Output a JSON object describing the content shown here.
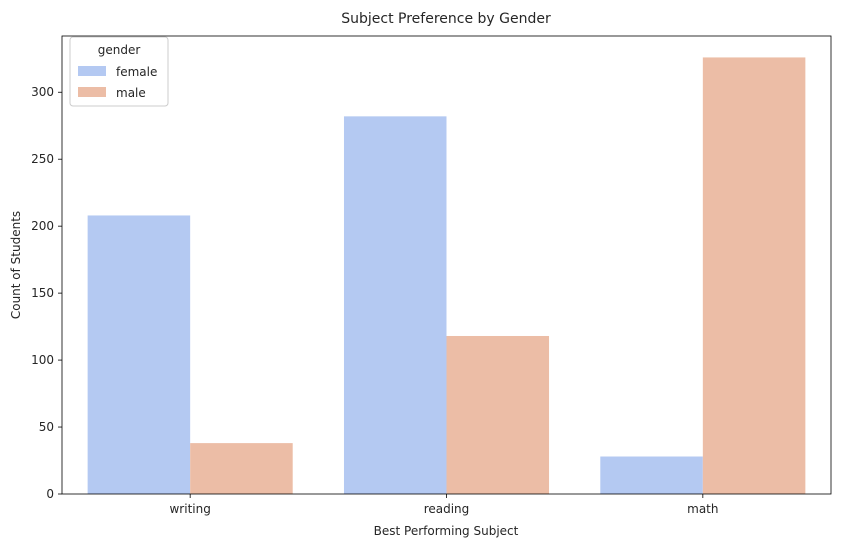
{
  "chart_data": {
    "type": "bar",
    "title": "Subject Preference by Gender",
    "xlabel": "Best Performing Subject",
    "ylabel": "Count of Students",
    "categories": [
      "writing",
      "reading",
      "math"
    ],
    "series": [
      {
        "name": "female",
        "values": [
          208,
          282,
          28
        ],
        "color": "#b4c9f2"
      },
      {
        "name": "male",
        "values": [
          38,
          118,
          326
        ],
        "color": "#ecbda6"
      }
    ],
    "ylim": [
      0,
      342
    ],
    "yticks": [
      0,
      50,
      100,
      150,
      200,
      250,
      300
    ],
    "grid": false,
    "legend": {
      "title": "gender",
      "position": "top-left"
    }
  }
}
